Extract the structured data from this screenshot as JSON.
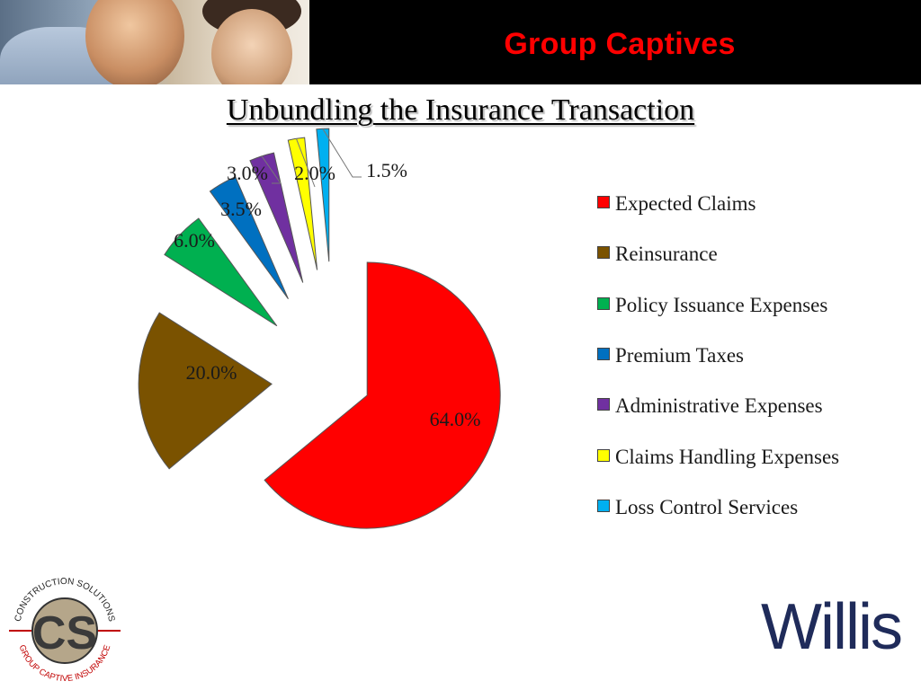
{
  "header": {
    "title": "Group Captives"
  },
  "slide": {
    "title": "Unbundling the Insurance Transaction"
  },
  "chart_data": {
    "type": "pie",
    "title": "",
    "categories": [
      "Expected Claims",
      "Reinsurance",
      "Policy Issuance Expenses",
      "Premium Taxes",
      "Administrative Expenses",
      "Claims Handling Expenses",
      "Loss Control Services"
    ],
    "values": [
      64.0,
      20.0,
      6.0,
      3.5,
      3.0,
      2.0,
      1.5
    ],
    "labels": [
      "64.0%",
      "20.0%",
      "6.0%",
      "3.5%",
      "3.0%",
      "2.0%",
      "1.5%"
    ],
    "colors": [
      "#ff0000",
      "#7a5200",
      "#00b050",
      "#0070c0",
      "#7030a0",
      "#ffff00",
      "#00b0f0"
    ],
    "legend_position": "right",
    "exploded": true
  },
  "logos": {
    "cs_top": "CONSTRUCTION SOLUTIONS",
    "cs_bottom": "GROUP CAPTIVE INSURANCE",
    "cs_initials": "CS",
    "willis": "Willis"
  }
}
